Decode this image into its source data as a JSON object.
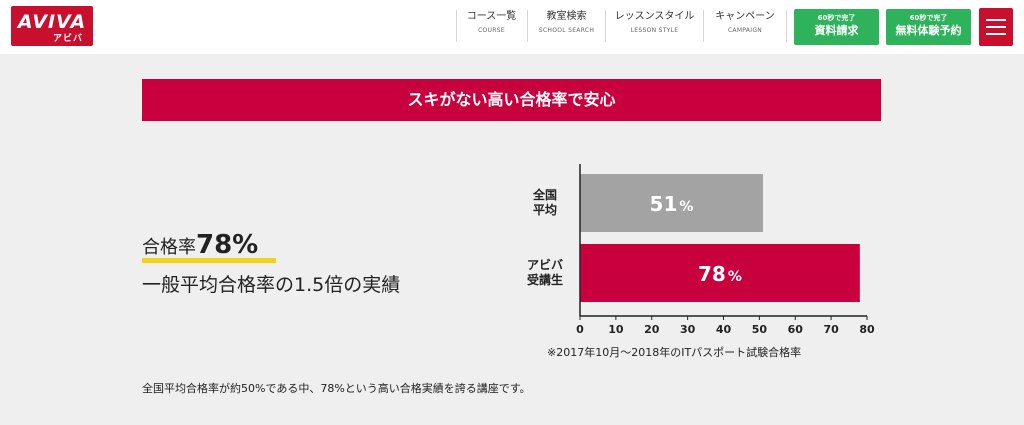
{
  "header": {
    "logo_main": "AVIVA",
    "logo_sub": "アビバ",
    "nav": [
      {
        "ja": "コース一覧",
        "en": "COURSE"
      },
      {
        "ja": "教室検索",
        "en": "SCHOOL SEARCH"
      },
      {
        "ja": "レッスンスタイル",
        "en": "LESSON STYLE"
      },
      {
        "ja": "キャンペーン",
        "en": "CAMPAIGN"
      }
    ],
    "cta_request": {
      "sub": "60秒で完了",
      "main": "資料請求"
    },
    "cta_trial": {
      "sub": "60秒で完了",
      "main": "無料体験予約"
    },
    "menu_icon": "hamburger-menu-icon"
  },
  "banner": {
    "title": "スキがない高い合格率で安心"
  },
  "rate": {
    "label": "合格率",
    "value": "78%",
    "description": "一般平均合格率の1.5倍の実績"
  },
  "chart_data": {
    "type": "bar",
    "orientation": "horizontal",
    "categories": [
      "全国平均",
      "アビバ受講生"
    ],
    "category_lines": [
      [
        "全国",
        "平均"
      ],
      [
        "アビバ",
        "受講生"
      ]
    ],
    "values": [
      51,
      78
    ],
    "value_labels": [
      "51",
      "78"
    ],
    "value_unit": "%",
    "colors": [
      "#a3a3a3",
      "#c8003e"
    ],
    "xlim": [
      0,
      80
    ],
    "ticks": [
      0,
      10,
      20,
      30,
      40,
      50,
      60,
      70,
      80
    ],
    "grid": false,
    "note": "※2017年10月〜2018年のITパスポート試験合格率"
  },
  "footer_text": "全国平均合格率が約50%である中、78%という高い合格実績を誇る講座です。",
  "colors": {
    "brand": "#c8102e",
    "banner": "#c8003e",
    "cta_green": "#2eb25c",
    "highlight": "#f4d21a"
  }
}
